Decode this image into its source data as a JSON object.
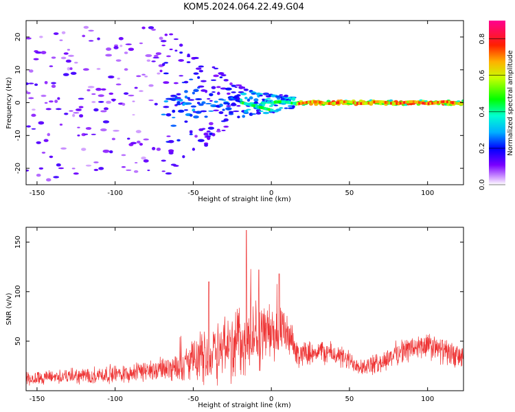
{
  "figure_title": "KOM5.2024.064.22.49.G04",
  "colors": {
    "snr_line": "#ee3333",
    "frame": "#000000",
    "background": "#ffffff"
  },
  "colorbar": {
    "label": "Normalized spectral amplitude",
    "ticks": [
      0.0,
      0.2,
      0.4,
      0.6,
      0.8
    ],
    "tick_labels": [
      "0.0",
      "0.2",
      "0.4",
      "0.6",
      "0.8"
    ],
    "range": [
      0,
      0.9
    ],
    "colormap": "gist_rainbow-like (white to violet to blue to cyan to green to yellow to red to magenta)"
  },
  "chart_data": [
    {
      "type": "heatmap",
      "title": "KOM5.2024.064.22.49.G04",
      "xlabel": "Height of straight line (km)",
      "ylabel": "Frequency (Hz)",
      "xlim": [
        -157,
        123
      ],
      "ylim": [
        -25,
        25
      ],
      "xticks": [
        -150,
        -100,
        -50,
        0,
        50,
        100
      ],
      "xtick_labels": [
        "-150",
        "-100",
        "-50",
        "0",
        "50",
        "100"
      ],
      "yticks": [
        -20,
        -10,
        0,
        10,
        20
      ],
      "ytick_labels": [
        "-20",
        "-10",
        "0",
        "10",
        "20"
      ],
      "description_points": [
        {
          "x": -140,
          "y_spread_hz": 25,
          "amplitude": 0.15
        },
        {
          "x": -100,
          "y_spread_hz": 20,
          "amplitude": 0.18
        },
        {
          "x": -60,
          "y_spread_hz": 10,
          "amplitude": 0.3
        },
        {
          "x": -20,
          "y_spread_hz": 4,
          "amplitude": 0.35
        },
        {
          "x": 0,
          "y_spread_hz": 2,
          "amplitude": 0.5
        },
        {
          "x": 50,
          "y_spread_hz": 0.8,
          "amplitude": 0.8
        },
        {
          "x": 120,
          "y_spread_hz": 0.8,
          "amplitude": 0.85
        }
      ]
    },
    {
      "type": "line",
      "xlabel": "Height of straight line (km)",
      "ylabel": "SNR (v/v)",
      "xlim": [
        -157,
        123
      ],
      "ylim": [
        0,
        165
      ],
      "xticks": [
        -150,
        -100,
        -50,
        0,
        50,
        100
      ],
      "xtick_labels": [
        "-150",
        "-100",
        "-50",
        "0",
        "50",
        "100"
      ],
      "yticks": [
        50,
        100,
        150
      ],
      "ytick_labels": [
        "50",
        "100",
        "150"
      ],
      "envelope": {
        "x": [
          -157,
          -140,
          -120,
          -100,
          -80,
          -70,
          -60,
          -50,
          -40,
          -30,
          -20,
          -10,
          0,
          10,
          18,
          20,
          30,
          40,
          50,
          60,
          70,
          80,
          90,
          100,
          110,
          123
        ],
        "mean": [
          12,
          14,
          15,
          17,
          20,
          22,
          25,
          30,
          38,
          45,
          50,
          55,
          60,
          55,
          35,
          38,
          40,
          37,
          30,
          24,
          28,
          38,
          43,
          45,
          40,
          32
        ],
        "spread": [
          6,
          6,
          7,
          8,
          9,
          10,
          12,
          18,
          25,
          30,
          35,
          30,
          25,
          18,
          10,
          10,
          10,
          10,
          9,
          8,
          9,
          10,
          11,
          12,
          11,
          10
        ]
      },
      "peaks": [
        {
          "x": -16,
          "y": 162
        },
        {
          "x": -40,
          "y": 110
        },
        {
          "x": -8,
          "y": 122
        },
        {
          "x": 5,
          "y": 118
        }
      ]
    }
  ]
}
